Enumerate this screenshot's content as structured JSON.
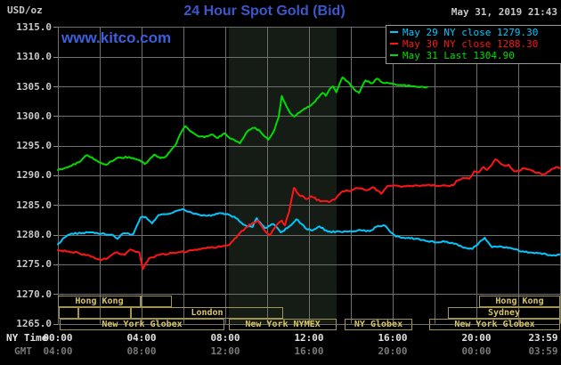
{
  "header": {
    "title": "24 Hour Spot Gold (Bid)",
    "datetime": "May 31, 2019 21:43",
    "units_label": "USD/oz",
    "watermark": "www.kitco.com"
  },
  "legend": {
    "items": [
      {
        "label": "May 29 NY close 1279.30",
        "color": "#00c8ff"
      },
      {
        "label": "May 30 NY close 1288.30",
        "color": "#ff1515"
      },
      {
        "label": "May 31 Last 1304.90",
        "color": "#00dc00"
      }
    ]
  },
  "axes": {
    "x_ny_label": "NY Time",
    "x_gmt_label": "GMT",
    "x_ny_ticks": [
      "00:00",
      "04:00",
      "08:00",
      "12:00",
      "16:00",
      "20:00",
      "23:59"
    ],
    "x_gmt_ticks": [
      "04:00",
      "08:00",
      "12:00",
      "16:00",
      "20:00",
      "00:00",
      "03:59"
    ],
    "y_ticks": [
      "1315.0",
      "1310.0",
      "1305.0",
      "1300.0",
      "1295.0",
      "1290.0",
      "1285.0",
      "1280.0",
      "1275.0",
      "1270.0",
      "1265.0"
    ]
  },
  "sessions": {
    "rows": [
      {
        "row": 1,
        "boxes": [
          {
            "start_h": 0.0,
            "end_h": 3.96,
            "label": "Hong Kong"
          },
          {
            "start_h": 3.96,
            "end_h": 5.45,
            "label": ""
          },
          {
            "start_h": 20.13,
            "end_h": 24.0,
            "label": "Hong Kong"
          }
        ]
      },
      {
        "row": 2,
        "boxes": [
          {
            "start_h": 0.05,
            "end_h": 0.98,
            "label": ""
          },
          {
            "start_h": 0.98,
            "end_h": 3.49,
            "label": ""
          },
          {
            "start_h": 3.49,
            "end_h": 10.77,
            "label": "London"
          },
          {
            "start_h": 18.64,
            "end_h": 24.0,
            "label": "Sydney"
          }
        ]
      },
      {
        "row": 3,
        "boxes": [
          {
            "start_h": 0.1,
            "end_h": 7.96,
            "label": "New York Globex"
          },
          {
            "start_h": 8.17,
            "end_h": 13.32,
            "label": "New York NYMEX"
          },
          {
            "start_h": 13.7,
            "end_h": 16.94,
            "label": "NY Globex"
          },
          {
            "start_h": 17.74,
            "end_h": 24.0,
            "label": "New York Globex"
          }
        ]
      }
    ]
  },
  "colors": {
    "background": "#000000",
    "grid": "#6f6f6f",
    "nymex_band": "#151b15",
    "tick": "#8a8a8a"
  },
  "chart_data": {
    "type": "line",
    "title": "24 Hour Spot Gold (Bid)",
    "ylabel": "USD/oz",
    "ylim": [
      1265,
      1315
    ],
    "y_tick_step": 5,
    "xlim_hours": [
      0,
      24
    ],
    "x_gridline_every_hours": 2,
    "grid": true,
    "legend_position": "top-right",
    "nymex_band_hours": [
      8.17,
      13.32
    ],
    "series": [
      {
        "name": "May 29",
        "legend": "May 29 NY close 1279.30",
        "color": "#00c8ff",
        "close": 1279.3,
        "points": [
          [
            0,
            1278.4
          ],
          [
            0.3,
            1279.5
          ],
          [
            0.65,
            1280.2
          ],
          [
            1.2,
            1280.3
          ],
          [
            1.6,
            1280.4
          ],
          [
            2.1,
            1280.2
          ],
          [
            2.65,
            1279.9
          ],
          [
            2.85,
            1279.3
          ],
          [
            3.1,
            1280.2
          ],
          [
            3.6,
            1280.1
          ],
          [
            3.95,
            1282.9
          ],
          [
            4.2,
            1283.0
          ],
          [
            4.5,
            1281.9
          ],
          [
            4.8,
            1283.3
          ],
          [
            5.3,
            1283.5
          ],
          [
            5.75,
            1284.1
          ],
          [
            6.0,
            1284.3
          ],
          [
            6.5,
            1283.5
          ],
          [
            7.15,
            1283.2
          ],
          [
            7.8,
            1283.6
          ],
          [
            8.1,
            1283.5
          ],
          [
            8.5,
            1282.8
          ],
          [
            8.95,
            1281.6
          ],
          [
            9.3,
            1281.3
          ],
          [
            9.5,
            1282.8
          ],
          [
            9.9,
            1281.1
          ],
          [
            10.3,
            1281.8
          ],
          [
            10.65,
            1280.4
          ],
          [
            11.05,
            1281.4
          ],
          [
            11.4,
            1282.6
          ],
          [
            11.9,
            1280.9
          ],
          [
            12.15,
            1280.7
          ],
          [
            12.5,
            1281.4
          ],
          [
            12.9,
            1280.5
          ],
          [
            13.5,
            1280.5
          ],
          [
            14.05,
            1280.5
          ],
          [
            14.45,
            1280.8
          ],
          [
            14.9,
            1280.6
          ],
          [
            15.3,
            1281.5
          ],
          [
            15.65,
            1281.5
          ],
          [
            15.85,
            1280.6
          ],
          [
            16.15,
            1279.7
          ],
          [
            16.6,
            1279.4
          ],
          [
            17.25,
            1279.3
          ],
          [
            17.75,
            1278.8
          ],
          [
            18.5,
            1278.8
          ],
          [
            19.0,
            1278.5
          ],
          [
            19.4,
            1277.8
          ],
          [
            19.8,
            1277.6
          ],
          [
            20.4,
            1279.5
          ],
          [
            20.75,
            1277.9
          ],
          [
            21.2,
            1278.0
          ],
          [
            21.6,
            1277.8
          ],
          [
            22.3,
            1277.1
          ],
          [
            23.05,
            1276.9
          ],
          [
            23.6,
            1276.5
          ],
          [
            23.98,
            1276.7
          ]
        ]
      },
      {
        "name": "May 30",
        "legend": "May 30 NY close 1288.30",
        "color": "#ff1515",
        "close": 1288.3,
        "points": [
          [
            0,
            1277.4
          ],
          [
            0.5,
            1277.2
          ],
          [
            1.0,
            1276.9
          ],
          [
            1.5,
            1276.5
          ],
          [
            2.05,
            1275.7
          ],
          [
            2.4,
            1276.1
          ],
          [
            2.75,
            1277.0
          ],
          [
            3.2,
            1276.6
          ],
          [
            3.45,
            1277.5
          ],
          [
            3.9,
            1277.0
          ],
          [
            4.05,
            1274.2
          ],
          [
            4.35,
            1276.0
          ],
          [
            4.8,
            1276.6
          ],
          [
            5.45,
            1276.9
          ],
          [
            6.2,
            1277.2
          ],
          [
            6.9,
            1277.7
          ],
          [
            7.6,
            1277.9
          ],
          [
            8.2,
            1278.3
          ],
          [
            8.7,
            1280.3
          ],
          [
            9.15,
            1281.7
          ],
          [
            9.55,
            1282.4
          ],
          [
            9.8,
            1281.1
          ],
          [
            10.1,
            1279.9
          ],
          [
            10.45,
            1281.6
          ],
          [
            10.7,
            1282.4
          ],
          [
            10.85,
            1281.6
          ],
          [
            11.05,
            1283.9
          ],
          [
            11.28,
            1287.9
          ],
          [
            11.5,
            1286.8
          ],
          [
            11.9,
            1286.0
          ],
          [
            12.1,
            1286.5
          ],
          [
            12.55,
            1285.6
          ],
          [
            12.95,
            1285.5
          ],
          [
            13.3,
            1286.2
          ],
          [
            13.6,
            1287.3
          ],
          [
            14.05,
            1287.5
          ],
          [
            14.25,
            1287.9
          ],
          [
            14.75,
            1287.5
          ],
          [
            15.05,
            1288.0
          ],
          [
            15.45,
            1286.9
          ],
          [
            15.75,
            1288.2
          ],
          [
            16.3,
            1288.2
          ],
          [
            17.3,
            1288.2
          ],
          [
            17.65,
            1288.4
          ],
          [
            18.2,
            1288.2
          ],
          [
            18.9,
            1288.3
          ],
          [
            19.05,
            1289.1
          ],
          [
            19.35,
            1289.6
          ],
          [
            19.65,
            1289.4
          ],
          [
            19.9,
            1290.7
          ],
          [
            20.1,
            1290.5
          ],
          [
            20.35,
            1291.4
          ],
          [
            20.5,
            1290.9
          ],
          [
            20.7,
            1291.6
          ],
          [
            20.9,
            1292.7
          ],
          [
            21.15,
            1292.0
          ],
          [
            21.35,
            1291.6
          ],
          [
            21.55,
            1291.8
          ],
          [
            21.8,
            1290.7
          ],
          [
            22.05,
            1290.7
          ],
          [
            22.2,
            1291.2
          ],
          [
            22.5,
            1291.0
          ],
          [
            22.8,
            1290.5
          ],
          [
            23.2,
            1290.2
          ],
          [
            23.5,
            1290.7
          ],
          [
            23.8,
            1291.4
          ],
          [
            23.98,
            1291.2
          ]
        ]
      },
      {
        "name": "May 31",
        "legend": "May 31 Last 1304.90",
        "color": "#00dc00",
        "last": 1304.9,
        "points": [
          [
            0,
            1290.9
          ],
          [
            0.5,
            1291.4
          ],
          [
            1.0,
            1292.2
          ],
          [
            1.4,
            1293.4
          ],
          [
            1.8,
            1292.6
          ],
          [
            2.3,
            1291.8
          ],
          [
            2.8,
            1292.9
          ],
          [
            3.4,
            1293.1
          ],
          [
            3.9,
            1292.6
          ],
          [
            4.15,
            1291.9
          ],
          [
            4.6,
            1293.5
          ],
          [
            4.9,
            1292.9
          ],
          [
            5.2,
            1293.3
          ],
          [
            5.6,
            1295.0
          ],
          [
            5.9,
            1297.3
          ],
          [
            6.1,
            1298.3
          ],
          [
            6.35,
            1297.4
          ],
          [
            6.65,
            1296.7
          ],
          [
            7.0,
            1296.4
          ],
          [
            7.35,
            1296.9
          ],
          [
            7.65,
            1296.3
          ],
          [
            7.95,
            1297.1
          ],
          [
            8.2,
            1296.3
          ],
          [
            8.45,
            1295.9
          ],
          [
            8.7,
            1295.4
          ],
          [
            9.0,
            1297.2
          ],
          [
            9.3,
            1298.0
          ],
          [
            9.6,
            1297.7
          ],
          [
            9.9,
            1296.5
          ],
          [
            10.05,
            1296.0
          ],
          [
            10.35,
            1297.7
          ],
          [
            10.55,
            1299.8
          ],
          [
            10.7,
            1303.4
          ],
          [
            10.85,
            1302.2
          ],
          [
            11.1,
            1300.5
          ],
          [
            11.3,
            1299.9
          ],
          [
            11.55,
            1300.6
          ],
          [
            11.85,
            1301.3
          ],
          [
            12.15,
            1302.0
          ],
          [
            12.45,
            1303.1
          ],
          [
            12.65,
            1303.9
          ],
          [
            12.8,
            1303.4
          ],
          [
            13.0,
            1304.6
          ],
          [
            13.15,
            1305.0
          ],
          [
            13.3,
            1304.0
          ],
          [
            13.5,
            1305.8
          ],
          [
            13.6,
            1306.5
          ],
          [
            13.85,
            1305.8
          ],
          [
            14.15,
            1304.5
          ],
          [
            14.4,
            1303.9
          ],
          [
            14.7,
            1306.0
          ],
          [
            15.0,
            1305.5
          ],
          [
            15.25,
            1306.3
          ],
          [
            15.55,
            1305.6
          ],
          [
            15.9,
            1305.5
          ],
          [
            16.4,
            1305.2
          ],
          [
            16.9,
            1305.0
          ],
          [
            17.2,
            1304.9
          ],
          [
            17.66,
            1304.9
          ]
        ]
      }
    ]
  }
}
